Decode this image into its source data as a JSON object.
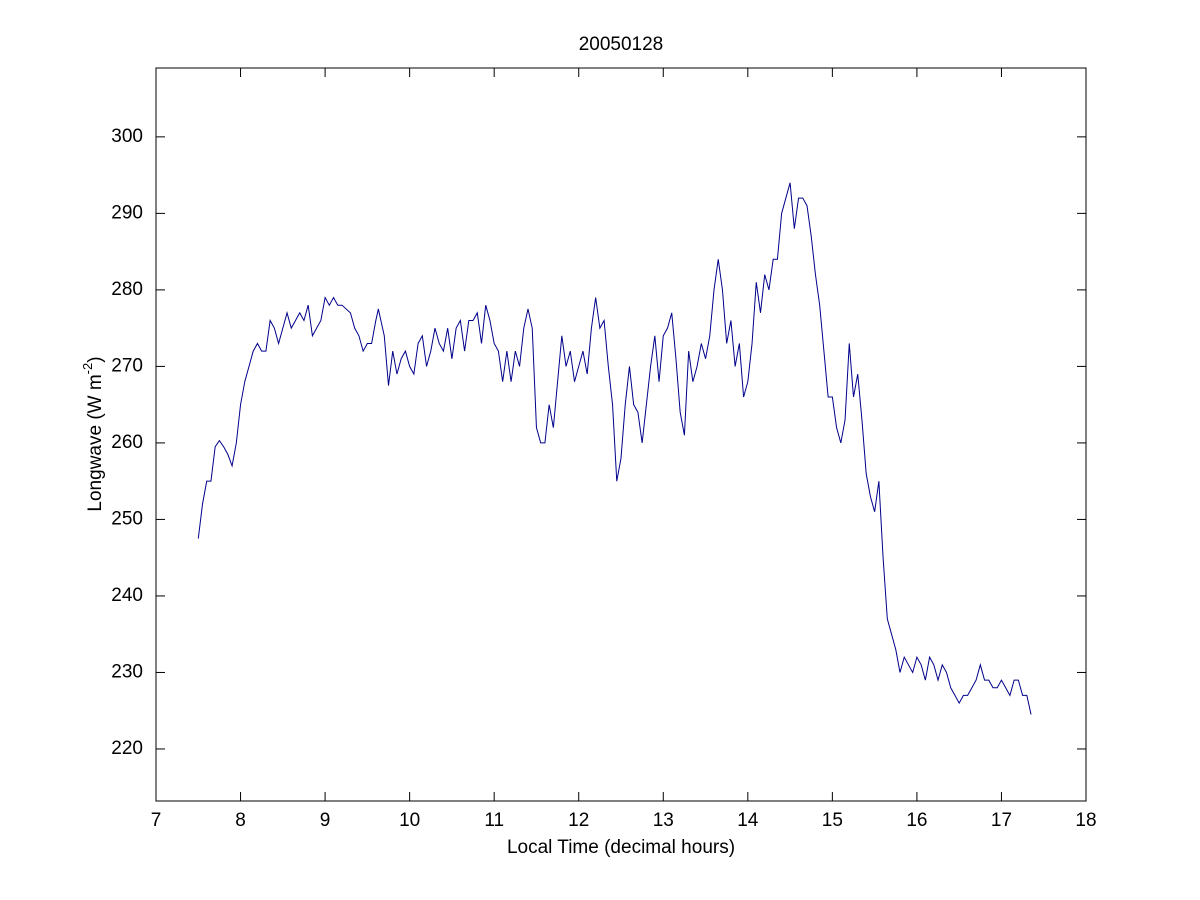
{
  "chart_data": {
    "type": "line",
    "title": "20050128",
    "xlabel": "Local Time (decimal hours)",
    "ylabel": {
      "text": "Longwave (W m",
      "superscript": "-2",
      "suffix": ")"
    },
    "color": "#00008b",
    "xlim": [
      7,
      18
    ],
    "xticks": [
      7,
      8,
      9,
      10,
      11,
      12,
      13,
      14,
      15,
      16,
      17,
      18
    ],
    "ylim": [
      213.2,
      309.0
    ],
    "yticks": [
      220,
      230,
      240,
      250,
      260,
      270,
      280,
      290,
      300
    ],
    "grid": false,
    "x": [
      7.5,
      7.55,
      7.6,
      7.65,
      7.7,
      7.75,
      7.8,
      7.85,
      7.9,
      7.95,
      8.0,
      8.05,
      8.1,
      8.15,
      8.2,
      8.25,
      8.3,
      8.35,
      8.4,
      8.45,
      8.5,
      8.55,
      8.6,
      8.65,
      8.7,
      8.75,
      8.8,
      8.85,
      8.9,
      8.95,
      9.0,
      9.05,
      9.1,
      9.15,
      9.2,
      9.3,
      9.35,
      9.4,
      9.45,
      9.5,
      9.55,
      9.6,
      9.63,
      9.7,
      9.75,
      9.8,
      9.85,
      9.9,
      9.95,
      10.0,
      10.05,
      10.1,
      10.15,
      10.2,
      10.25,
      10.3,
      10.35,
      10.4,
      10.45,
      10.5,
      10.55,
      10.6,
      10.65,
      10.7,
      10.75,
      10.8,
      10.85,
      10.9,
      10.95,
      11.0,
      11.05,
      11.1,
      11.15,
      11.2,
      11.25,
      11.3,
      11.35,
      11.4,
      11.45,
      11.5,
      11.55,
      11.6,
      11.65,
      11.7,
      11.75,
      11.8,
      11.85,
      11.9,
      11.95,
      12.0,
      12.05,
      12.1,
      12.15,
      12.2,
      12.25,
      12.3,
      12.35,
      12.4,
      12.45,
      12.5,
      12.55,
      12.6,
      12.65,
      12.7,
      12.75,
      12.8,
      12.85,
      12.9,
      12.95,
      13.0,
      13.05,
      13.1,
      13.15,
      13.2,
      13.25,
      13.3,
      13.35,
      13.4,
      13.45,
      13.5,
      13.55,
      13.6,
      13.65,
      13.7,
      13.75,
      13.8,
      13.85,
      13.9,
      13.95,
      14.0,
      14.05,
      14.1,
      14.15,
      14.2,
      14.25,
      14.3,
      14.35,
      14.4,
      14.45,
      14.5,
      14.55,
      14.6,
      14.65,
      14.7,
      14.75,
      14.8,
      14.85,
      14.9,
      14.95,
      15.0,
      15.05,
      15.1,
      15.15,
      15.2,
      15.25,
      15.3,
      15.35,
      15.4,
      15.45,
      15.5,
      15.55,
      15.6,
      15.65,
      15.7,
      15.75,
      15.8,
      15.85,
      15.9,
      15.95,
      16.0,
      16.05,
      16.1,
      16.15,
      16.2,
      16.25,
      16.3,
      16.35,
      16.4,
      16.45,
      16.5,
      16.55,
      16.6,
      16.65,
      16.7,
      16.75,
      16.8,
      16.85,
      16.9,
      16.95,
      17.0,
      17.05,
      17.1,
      17.15,
      17.2,
      17.25,
      17.3,
      17.35
    ],
    "values": [
      247.5,
      252,
      255,
      255,
      259.5,
      260.3,
      259.5,
      258.5,
      257,
      260,
      265,
      268,
      270,
      272,
      273,
      272,
      272,
      276,
      275,
      273,
      275,
      277,
      275,
      276,
      277,
      276,
      278,
      274,
      275,
      276,
      279,
      278,
      279,
      278,
      278,
      277,
      275,
      274,
      272,
      273,
      273,
      276,
      277.5,
      274,
      267.5,
      272,
      269,
      271,
      272,
      270,
      269,
      273,
      274,
      270,
      272,
      275,
      273,
      272,
      275,
      271,
      275,
      276,
      272,
      276,
      276,
      277,
      273,
      278,
      276,
      273,
      272,
      268,
      272,
      268,
      272,
      270,
      275,
      277.5,
      275,
      262,
      260,
      260,
      265,
      262,
      268,
      274,
      270,
      272,
      268,
      270,
      272,
      269,
      275,
      279,
      275,
      276,
      270,
      265,
      255,
      258,
      265,
      270,
      265,
      264,
      260,
      265,
      270,
      274,
      268,
      274,
      275,
      277,
      271,
      264,
      261,
      272,
      268,
      270,
      273,
      271,
      274,
      280,
      284,
      280,
      273,
      276,
      270,
      273,
      266,
      268,
      273,
      281,
      277,
      282,
      280,
      284,
      284,
      290,
      292,
      294,
      288,
      292,
      292,
      291,
      287,
      282,
      278,
      272,
      266,
      266,
      262,
      260,
      263,
      273,
      266,
      269,
      263,
      256,
      253,
      251,
      255,
      245,
      237,
      235,
      233,
      230,
      232,
      231,
      230,
      232,
      231,
      229,
      232,
      231,
      229,
      231,
      230,
      228,
      227,
      226,
      227,
      227,
      228,
      229,
      231,
      229,
      229,
      228,
      228,
      229,
      228,
      227,
      229,
      229,
      227,
      227,
      224.5
    ]
  }
}
